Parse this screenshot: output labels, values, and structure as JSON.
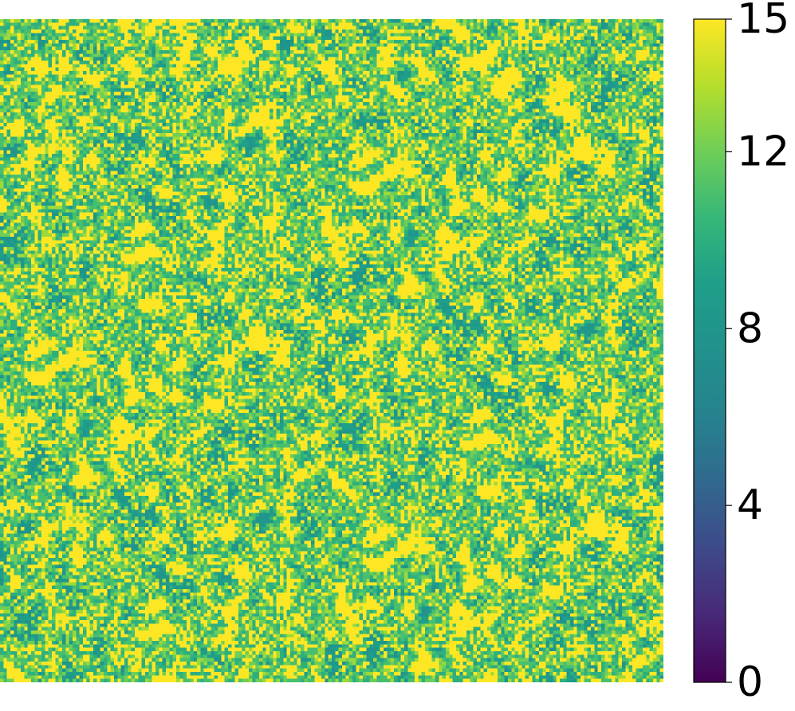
{
  "chart_data": {
    "type": "heatmap",
    "title": "",
    "xlabel": "",
    "ylabel": "",
    "grid_rows": 192,
    "grid_cols": 192,
    "value_range": [
      0,
      15
    ],
    "dominant_value": 15,
    "typical_values": [
      15,
      14,
      13,
      12,
      11,
      10,
      9,
      8
    ],
    "colormap": "viridis",
    "colorbar": {
      "ticks": [
        0,
        4,
        8,
        12,
        15
      ],
      "tick_labels": [
        "0",
        "4",
        "8",
        "12",
        "15"
      ],
      "range": [
        0,
        15
      ]
    }
  },
  "colors": {
    "viridis_low": "#440154",
    "viridis_mid": "#21918c",
    "viridis_high": "#fde725"
  }
}
